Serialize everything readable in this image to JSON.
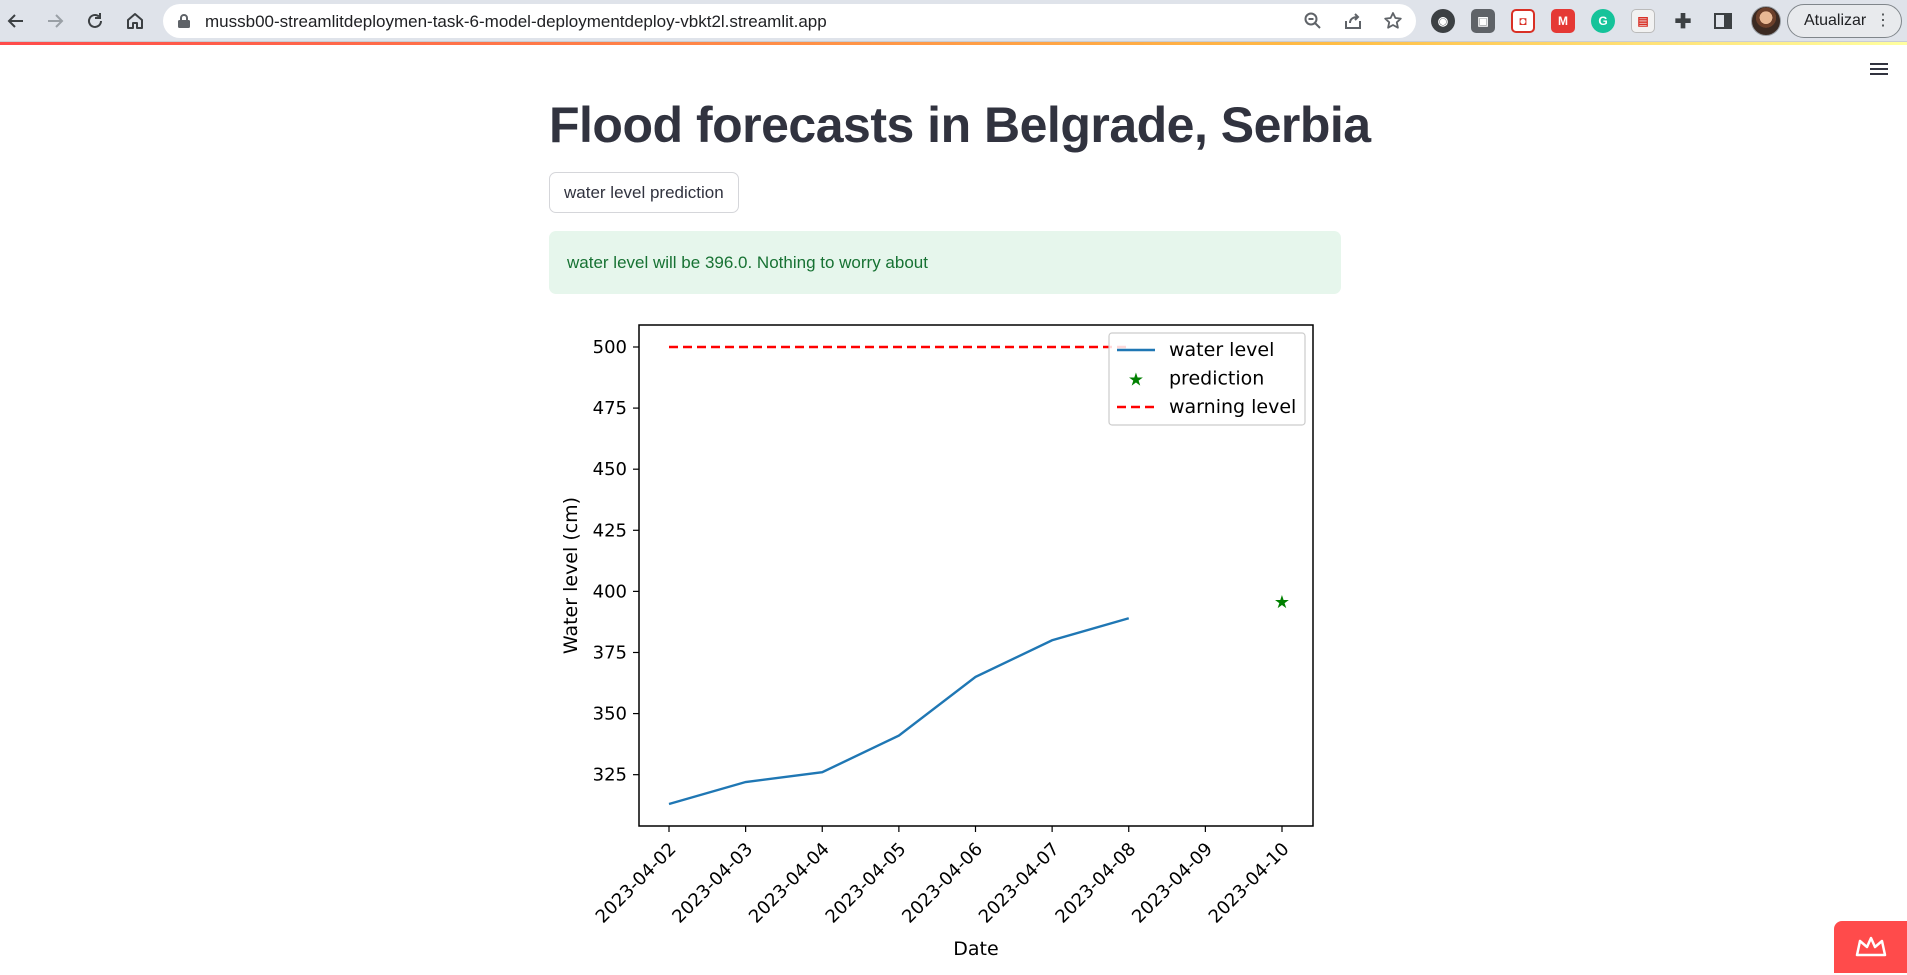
{
  "browser": {
    "url": "mussb00-streamlitdeploymen-task-6-model-deploymentdeploy-vbkt2l.streamlit.app",
    "update_label": "Atualizar",
    "extensions": [
      "ext-1",
      "ext-2",
      "ext-3",
      "ext-4",
      "grammarly",
      "ext-6",
      "puzzle-extensions",
      "side-panel"
    ]
  },
  "page": {
    "title": "Flood forecasts in Belgrade, Serbia",
    "button_label": "water level prediction",
    "message": "water level will be 396.0. Nothing to worry about"
  },
  "chart_data": {
    "type": "line",
    "xlabel": "Date",
    "ylabel": "Water level (cm)",
    "x_ticks": [
      "2023-04-02",
      "2023-04-03",
      "2023-04-04",
      "2023-04-05",
      "2023-04-06",
      "2023-04-07",
      "2023-04-08",
      "2023-04-09",
      "2023-04-10"
    ],
    "y_ticks": [
      325,
      350,
      375,
      400,
      425,
      450,
      475,
      500
    ],
    "ylim": [
      304,
      509
    ],
    "grid": false,
    "legend_position": "top-right",
    "series": [
      {
        "name": "water level",
        "style": "line",
        "color": "#1f77b4",
        "points": [
          {
            "x": "2023-04-02",
            "y": 313
          },
          {
            "x": "2023-04-03",
            "y": 322
          },
          {
            "x": "2023-04-04",
            "y": 326
          },
          {
            "x": "2023-04-05",
            "y": 341
          },
          {
            "x": "2023-04-06",
            "y": 365
          },
          {
            "x": "2023-04-07",
            "y": 380
          },
          {
            "x": "2023-04-08",
            "y": 389
          }
        ]
      },
      {
        "name": "prediction",
        "style": "star",
        "color": "#008000",
        "points": [
          {
            "x": "2023-04-10",
            "y": 396
          }
        ]
      },
      {
        "name": "warning level",
        "style": "dashed",
        "color": "#ff0000",
        "points": [
          {
            "x": "2023-04-02",
            "y": 500
          },
          {
            "x": "2023-04-08",
            "y": 500
          }
        ]
      }
    ]
  }
}
